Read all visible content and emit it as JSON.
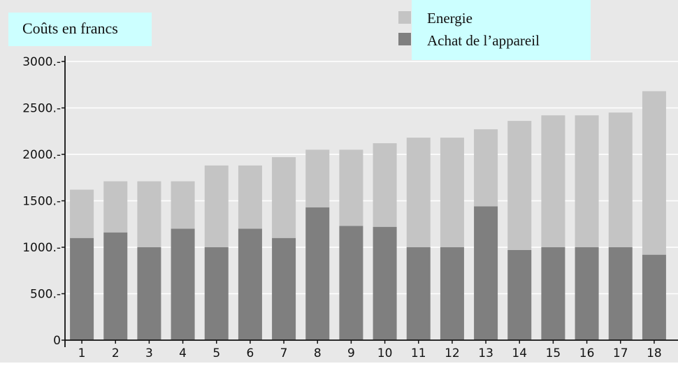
{
  "chart_data": {
    "type": "bar",
    "stacked": true,
    "ylabel": "Coûts en francs",
    "categories": [
      "1",
      "2",
      "3",
      "4",
      "5",
      "6",
      "7",
      "8",
      "9",
      "10",
      "11",
      "12",
      "13",
      "14",
      "15",
      "16",
      "17",
      "18"
    ],
    "ylim": [
      0,
      3000
    ],
    "yticks": [
      "0",
      "500.-",
      "1000.-",
      "1500.-",
      "2000.-",
      "2500.-",
      "3000.-"
    ],
    "grid": true,
    "legend_position": "top-right",
    "series": [
      {
        "name": "Achat de l’appareil",
        "color": "#7f7f7f",
        "values": [
          1100,
          1160,
          1000,
          1200,
          1000,
          1200,
          1100,
          1430,
          1230,
          1220,
          1000,
          1000,
          1440,
          970,
          1000,
          1000,
          1000,
          920
        ]
      },
      {
        "name": "Energie",
        "color": "#c4c4c4",
        "values": [
          520,
          550,
          710,
          510,
          880,
          680,
          870,
          620,
          820,
          900,
          1180,
          1180,
          830,
          1390,
          1420,
          1420,
          1450,
          1760
        ]
      }
    ]
  },
  "colors": {
    "plot_background": "#e8e8e8",
    "label_background": "#ccffff",
    "grid": "#ffffff"
  }
}
